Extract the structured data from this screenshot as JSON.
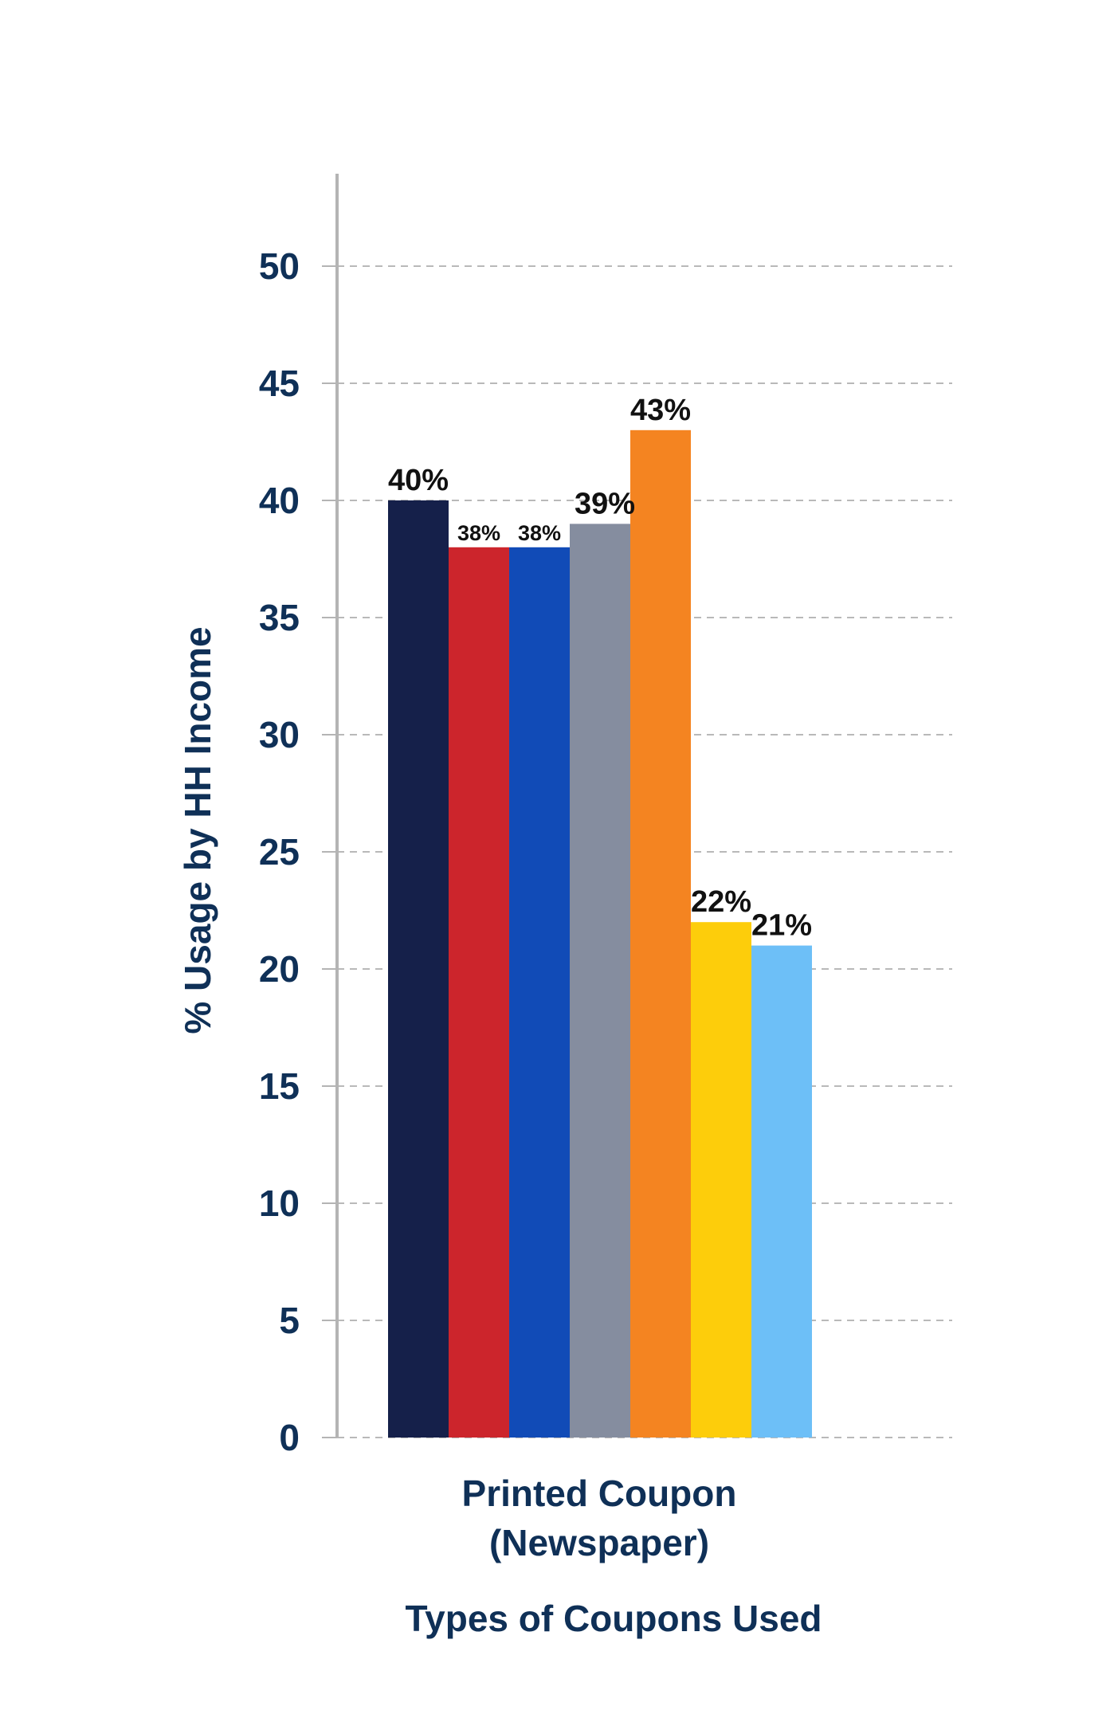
{
  "chart_data": {
    "type": "bar",
    "categories": [
      "Printed Coupon (Newspaper)"
    ],
    "category_label_lines": [
      "Printed Coupon",
      "(Newspaper)"
    ],
    "series": [
      {
        "values": [
          40
        ],
        "color": "#15204a",
        "label": "40%"
      },
      {
        "values": [
          38
        ],
        "color": "#cc252c",
        "label": "38%"
      },
      {
        "values": [
          38
        ],
        "color": "#114bb7",
        "label": "38%"
      },
      {
        "values": [
          39
        ],
        "color": "#858d9f",
        "label": "39%"
      },
      {
        "values": [
          43
        ],
        "color": "#f48421",
        "label": "43%"
      },
      {
        "values": [
          22
        ],
        "color": "#fdcd0b",
        "label": "22%"
      },
      {
        "values": [
          21
        ],
        "color": "#6dbff7",
        "label": "21%"
      }
    ],
    "xlabel": "Types of Coupons Used",
    "ylabel": "% Usage by HH Income",
    "ylim": [
      0,
      50
    ],
    "yticks": [
      0,
      5,
      10,
      15,
      20,
      25,
      30,
      35,
      40,
      45,
      50
    ],
    "grid": true,
    "legend": "none"
  },
  "colors": {
    "text": "#0f3057",
    "grid": "#b9b9b9",
    "axis": "#b4b4b4",
    "data_label": "#111111"
  }
}
